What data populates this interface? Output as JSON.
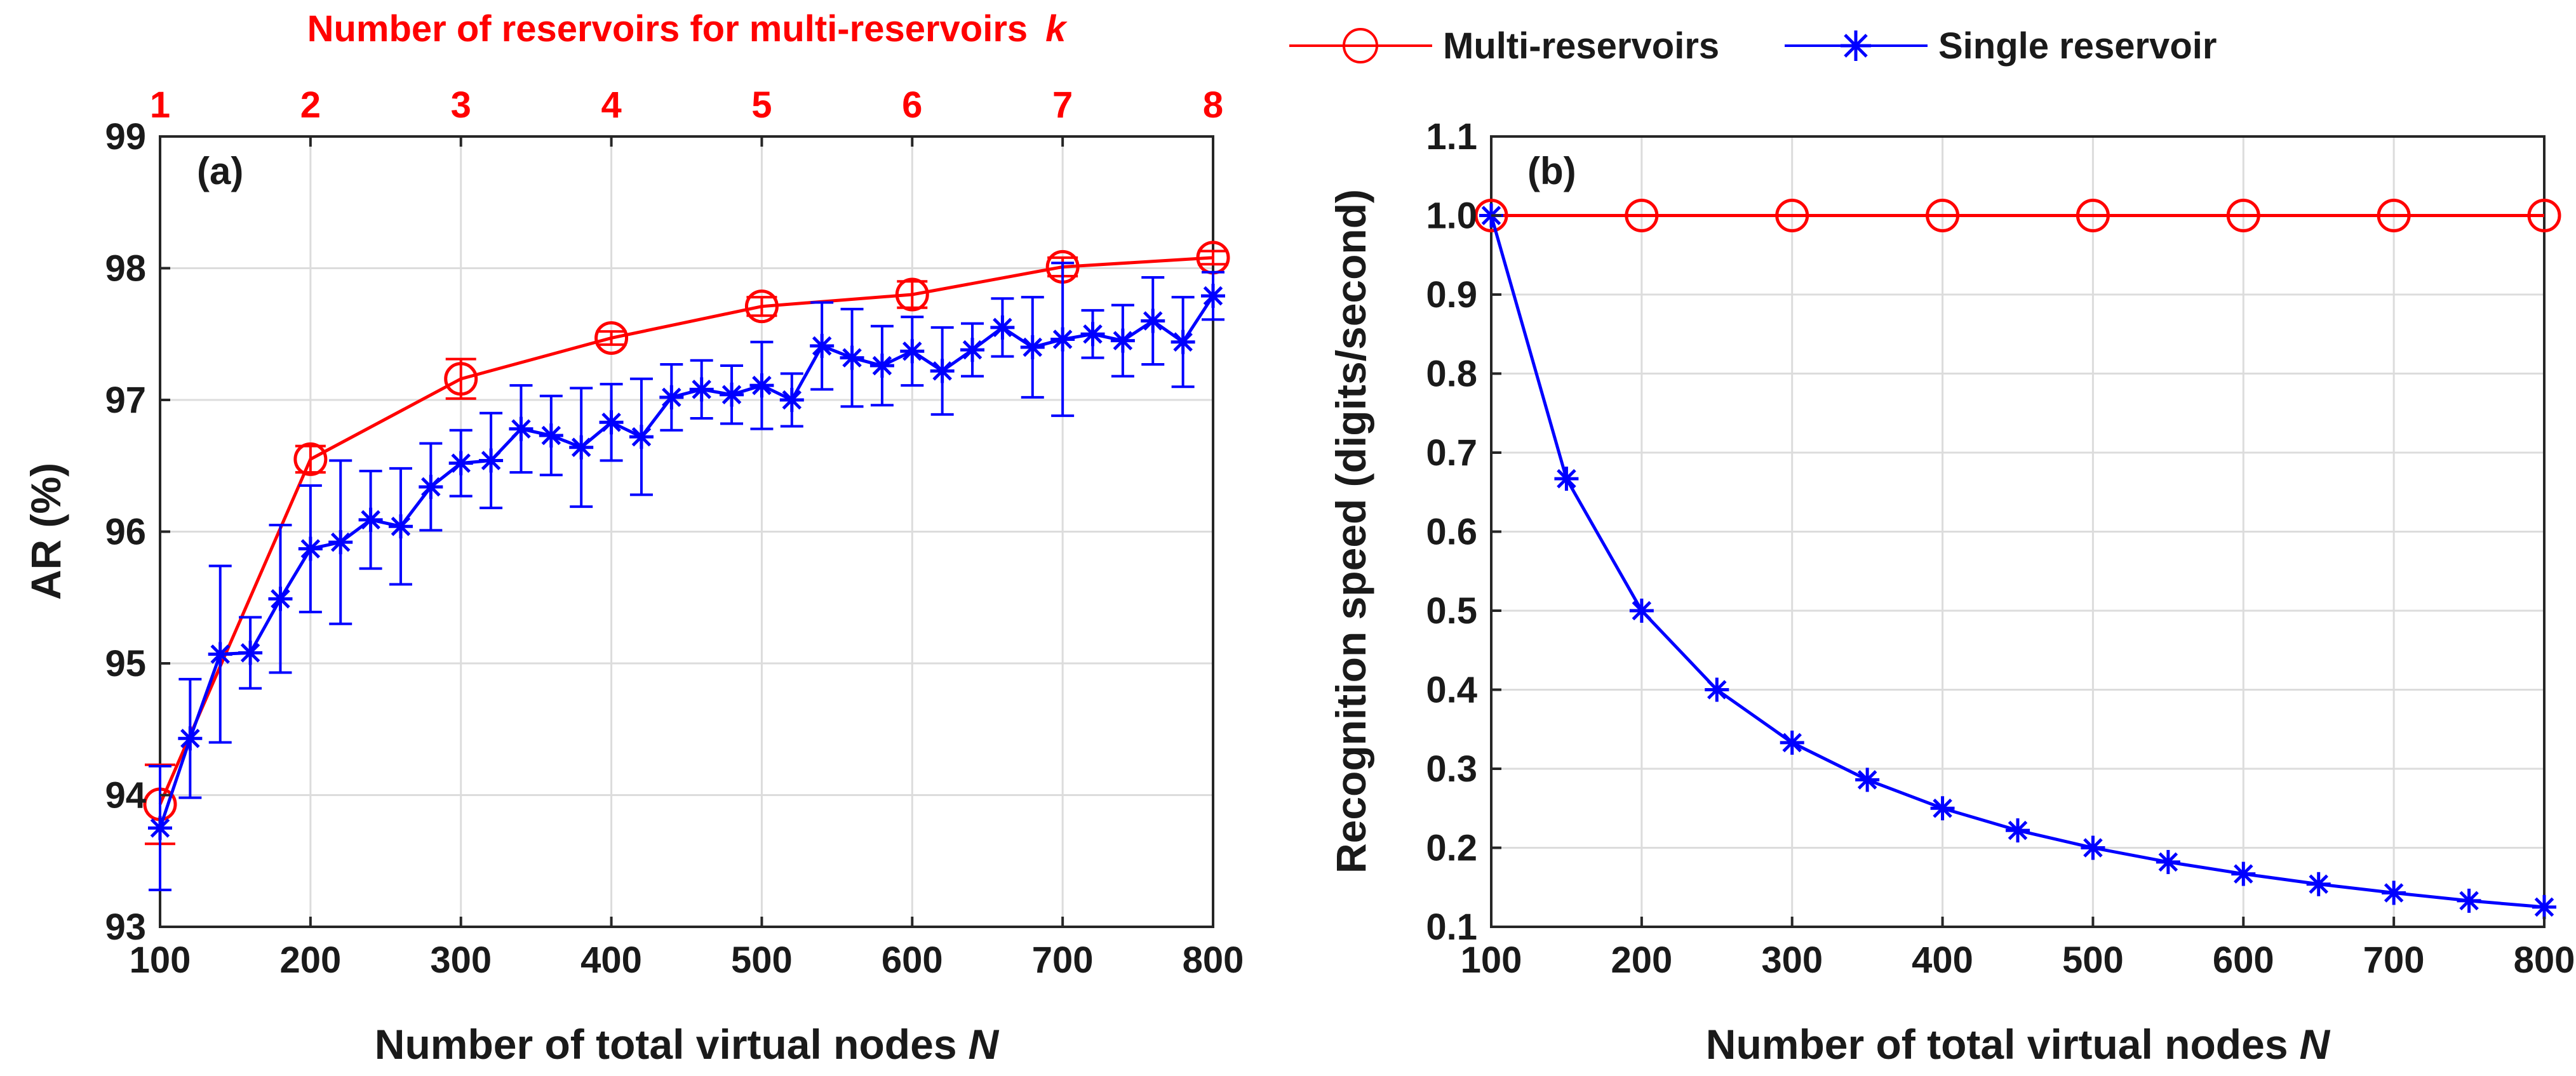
{
  "colors": {
    "multi": "#ff0000",
    "single": "#0000ff",
    "axis": "#262626",
    "grid": "#dcdcdc"
  },
  "legend": {
    "multi_label": "Multi-reservoirs",
    "single_label": "Single reservoir"
  },
  "chart_data": [
    {
      "type": "line",
      "panel_label": "(a)",
      "top_title_prefix": "Number of reservoirs for multi-reservoirs",
      "top_title_var": "k",
      "top_ticks": [
        "1",
        "2",
        "3",
        "4",
        "5",
        "6",
        "7",
        "8"
      ],
      "top_tick_x": [
        100,
        200,
        300,
        400,
        500,
        600,
        700,
        800
      ],
      "xlabel_prefix": "Number of total virtual nodes",
      "xlabel_var": "N",
      "ylabel": "AR (%)",
      "xlim": [
        100,
        800
      ],
      "ylim": [
        93,
        99
      ],
      "xticks": [
        100,
        200,
        300,
        400,
        500,
        600,
        700,
        800
      ],
      "yticks": [
        93,
        94,
        95,
        96,
        97,
        98,
        99
      ],
      "grid": true,
      "series": [
        {
          "name": "Multi-reservoirs",
          "color_key": "multi",
          "marker": "circle",
          "x": [
            100,
            200,
            300,
            400,
            500,
            600,
            700,
            800
          ],
          "y": [
            93.93,
            96.55,
            97.16,
            97.47,
            97.71,
            97.8,
            98.01,
            98.08
          ],
          "err": [
            0.3,
            0.1,
            0.15,
            0.05,
            0.07,
            0.1,
            0.07,
            0.05
          ]
        },
        {
          "name": "Single reservoir",
          "color_key": "single",
          "marker": "asterisk",
          "x": [
            100,
            120,
            140,
            160,
            180,
            200,
            220,
            240,
            260,
            280,
            300,
            320,
            340,
            360,
            380,
            400,
            420,
            440,
            460,
            480,
            500,
            520,
            540,
            560,
            580,
            600,
            620,
            640,
            660,
            680,
            700,
            720,
            740,
            760,
            780,
            800
          ],
          "y": [
            93.75,
            94.43,
            95.07,
            95.08,
            95.49,
            95.87,
            95.92,
            96.09,
            96.04,
            96.34,
            96.52,
            96.54,
            96.78,
            96.73,
            96.64,
            96.83,
            96.72,
            97.02,
            97.08,
            97.04,
            97.11,
            97.0,
            97.41,
            97.32,
            97.26,
            97.37,
            97.22,
            97.38,
            97.55,
            97.4,
            97.46,
            97.5,
            97.45,
            97.6,
            97.44,
            97.79
          ],
          "err": [
            0.47,
            0.45,
            0.67,
            0.27,
            0.56,
            0.48,
            0.62,
            0.37,
            0.44,
            0.33,
            0.25,
            0.36,
            0.33,
            0.3,
            0.45,
            0.29,
            0.44,
            0.25,
            0.22,
            0.22,
            0.33,
            0.2,
            0.33,
            0.37,
            0.3,
            0.26,
            0.33,
            0.2,
            0.22,
            0.38,
            0.58,
            0.18,
            0.27,
            0.33,
            0.34,
            0.18
          ]
        }
      ]
    },
    {
      "type": "line",
      "panel_label": "(b)",
      "xlabel_prefix": "Number of total virtual nodes",
      "xlabel_var": "N",
      "ylabel": "Recognition speed (digits/second)",
      "xlim": [
        100,
        800
      ],
      "ylim": [
        0.1,
        1.1
      ],
      "xticks": [
        100,
        200,
        300,
        400,
        500,
        600,
        700,
        800
      ],
      "yticks": [
        0.1,
        0.2,
        0.3,
        0.4,
        0.5,
        0.6,
        0.7,
        0.8,
        0.9,
        1.0,
        1.1
      ],
      "ytick_labels": [
        "0.1",
        "0.2",
        "0.3",
        "0.4",
        "0.5",
        "0.6",
        "0.7",
        "0.8",
        "0.9",
        "1.0",
        "1.1"
      ],
      "grid": true,
      "series": [
        {
          "name": "Multi-reservoirs",
          "color_key": "multi",
          "marker": "circle",
          "x": [
            100,
            200,
            300,
            400,
            500,
            600,
            700,
            800
          ],
          "y": [
            1.0,
            1.0,
            1.0,
            1.0,
            1.0,
            1.0,
            1.0,
            1.0
          ]
        },
        {
          "name": "Single reservoir",
          "color_key": "single",
          "marker": "asterisk",
          "x": [
            100,
            150,
            200,
            250,
            300,
            350,
            400,
            450,
            500,
            550,
            600,
            650,
            700,
            750,
            800
          ],
          "y": [
            1.0,
            0.667,
            0.5,
            0.4,
            0.333,
            0.286,
            0.25,
            0.222,
            0.2,
            0.182,
            0.167,
            0.154,
            0.143,
            0.133,
            0.125
          ]
        }
      ]
    }
  ]
}
